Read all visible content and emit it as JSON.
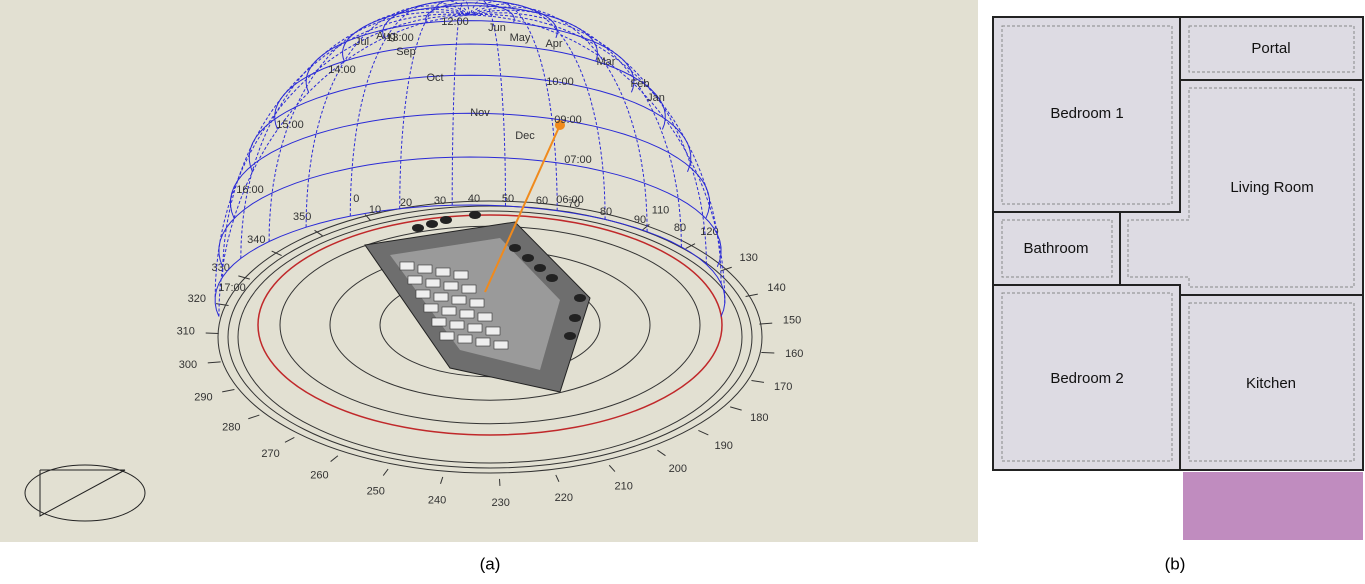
{
  "panel_a": {
    "hour_labels": [
      "12:00",
      "13:00",
      "14:00",
      "15:00",
      "16:00",
      "17:00",
      "10:00",
      "09:00",
      "07:00",
      "06:00"
    ],
    "month_labels": [
      "Jun",
      "May",
      "Apr",
      "Mar",
      "Feb",
      "Jan",
      "Jul",
      "Aug",
      "Sep",
      "Oct",
      "Nov",
      "Dec"
    ],
    "altitude_labels": [
      "10",
      "20",
      "30",
      "40",
      "50",
      "60",
      "70",
      "80",
      "90",
      "80"
    ],
    "azimuth_labels": [
      "110",
      "120",
      "130",
      "140",
      "150",
      "160",
      "170",
      "180",
      "190",
      "200",
      "210",
      "220",
      "230",
      "240",
      "250",
      "260",
      "270",
      "280",
      "290",
      "300",
      "310",
      "320",
      "330",
      "340",
      "350",
      "0"
    ],
    "caption": "(a)"
  },
  "panel_b": {
    "rooms": [
      "Portal",
      "Bedroom 1",
      "Living Room",
      "Bathroom",
      "Bedroom 2",
      "Kitchen"
    ],
    "caption": "(b)"
  }
}
